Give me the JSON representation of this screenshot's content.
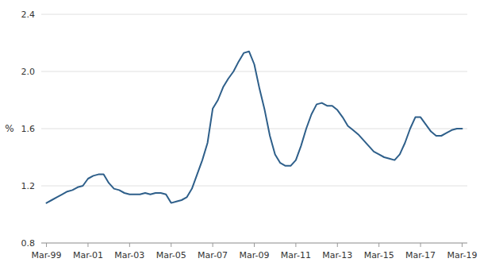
{
  "chart_data": {
    "type": "line",
    "ylabel": "%",
    "color": "#2e5f8a",
    "grid": true,
    "x": [
      1999.25,
      1999.5,
      1999.75,
      2000.0,
      2000.25,
      2000.5,
      2000.75,
      2001.0,
      2001.25,
      2001.5,
      2001.75,
      2002.0,
      2002.25,
      2002.5,
      2002.75,
      2003.0,
      2003.25,
      2003.5,
      2003.75,
      2004.0,
      2004.25,
      2004.5,
      2004.75,
      2005.0,
      2005.25,
      2005.5,
      2005.75,
      2006.0,
      2006.25,
      2006.5,
      2006.75,
      2007.0,
      2007.25,
      2007.5,
      2007.75,
      2008.0,
      2008.25,
      2008.5,
      2008.75,
      2009.0,
      2009.25,
      2009.5,
      2009.75,
      2010.0,
      2010.25,
      2010.5,
      2010.75,
      2011.0,
      2011.25,
      2011.5,
      2011.75,
      2012.0,
      2012.25,
      2012.5,
      2012.75,
      2013.0,
      2013.25,
      2013.5,
      2013.75,
      2014.0,
      2014.25,
      2014.5,
      2014.75,
      2015.0,
      2015.25,
      2015.5,
      2015.75,
      2016.0,
      2016.25,
      2016.5,
      2016.75,
      2017.0,
      2017.25,
      2017.5,
      2017.75,
      2018.0,
      2018.25,
      2018.5,
      2018.75,
      2019.0,
      2019.25
    ],
    "values": [
      1.08,
      1.1,
      1.12,
      1.14,
      1.16,
      1.17,
      1.19,
      1.2,
      1.25,
      1.27,
      1.28,
      1.28,
      1.22,
      1.18,
      1.17,
      1.15,
      1.14,
      1.14,
      1.14,
      1.15,
      1.14,
      1.15,
      1.15,
      1.14,
      1.08,
      1.09,
      1.1,
      1.12,
      1.18,
      1.28,
      1.38,
      1.5,
      1.74,
      1.8,
      1.89,
      1.95,
      2.0,
      2.07,
      2.13,
      2.14,
      2.05,
      1.88,
      1.73,
      1.55,
      1.42,
      1.36,
      1.34,
      1.34,
      1.38,
      1.48,
      1.6,
      1.7,
      1.77,
      1.78,
      1.76,
      1.76,
      1.73,
      1.68,
      1.62,
      1.59,
      1.56,
      1.52,
      1.48,
      1.44,
      1.42,
      1.4,
      1.39,
      1.38,
      1.42,
      1.5,
      1.6,
      1.68,
      1.68,
      1.63,
      1.58,
      1.55,
      1.55,
      1.57,
      1.59,
      1.6,
      1.6
    ],
    "xlim": [
      1999.0,
      2019.5
    ],
    "xticks": [
      {
        "value": 1999.25,
        "label": "Mar-99"
      },
      {
        "value": 2001.25,
        "label": "Mar-01"
      },
      {
        "value": 2003.25,
        "label": "Mar-03"
      },
      {
        "value": 2005.25,
        "label": "Mar-05"
      },
      {
        "value": 2007.25,
        "label": "Mar-07"
      },
      {
        "value": 2009.25,
        "label": "Mar-09"
      },
      {
        "value": 2011.25,
        "label": "Mar-11"
      },
      {
        "value": 2013.25,
        "label": "Mar-13"
      },
      {
        "value": 2015.25,
        "label": "Mar-15"
      },
      {
        "value": 2017.25,
        "label": "Mar-17"
      },
      {
        "value": 2019.25,
        "label": "Mar-19"
      }
    ],
    "ylim": [
      0.8,
      2.4
    ],
    "yticks": [
      0.8,
      1.2,
      1.6,
      {
        "value": 2.0,
        "label": "2.0"
      },
      2.4
    ]
  }
}
